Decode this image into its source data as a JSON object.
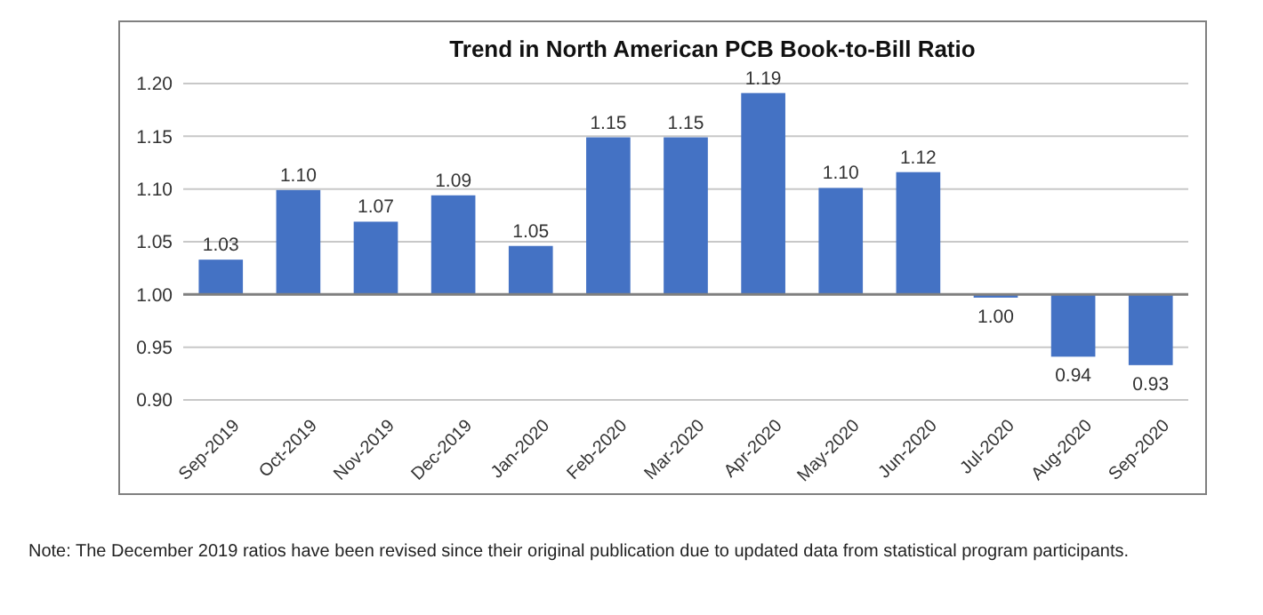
{
  "chart_data": {
    "type": "bar",
    "title": "Trend in North American PCB Book-to-Bill Ratio",
    "categories": [
      "Sep-2019",
      "Oct-2019",
      "Nov-2019",
      "Dec-2019",
      "Jan-2020",
      "Feb-2020",
      "Mar-2020",
      "Apr-2020",
      "May-2020",
      "Jun-2020",
      "Jul-2020",
      "Aug-2020",
      "Sep-2020"
    ],
    "base": [
      1,
      1,
      1,
      1,
      1,
      1,
      1,
      1,
      1,
      1,
      1,
      1,
      1
    ],
    "values": [
      0.033,
      0.099,
      0.069,
      0.094,
      0.046,
      0.149,
      0.149,
      0.191,
      0.101,
      0.116,
      -0.003,
      -0.059,
      -0.067
    ],
    "value_labels": [
      "1.03",
      "1.10",
      "1.07",
      "1.09",
      "1.05",
      "1.15",
      "1.15",
      "1.19",
      "1.10",
      "1.12",
      "1.00",
      "0.94",
      "0.93"
    ],
    "color": "#4472c4",
    "ylim": [
      0.9,
      1.2
    ],
    "yticks": [
      {
        "value": 0.9,
        "label": "0.90"
      },
      {
        "value": 0.95,
        "label": "0.95"
      },
      {
        "value": 1.0,
        "label": "1.00"
      },
      {
        "value": 1.05,
        "label": "1.05"
      },
      {
        "value": 1.1,
        "label": "1.10"
      },
      {
        "value": 1.15,
        "label": "1.15"
      },
      {
        "value": 1.2,
        "label": "1.20"
      }
    ],
    "ref_lines": [
      {
        "axis": "y",
        "value": 1.0,
        "color": "#808080"
      }
    ],
    "grid": "y",
    "annotations": [
      "Note: The December 2019 ratios have been revised since their original publication due to updated data from statistical program participants."
    ]
  }
}
